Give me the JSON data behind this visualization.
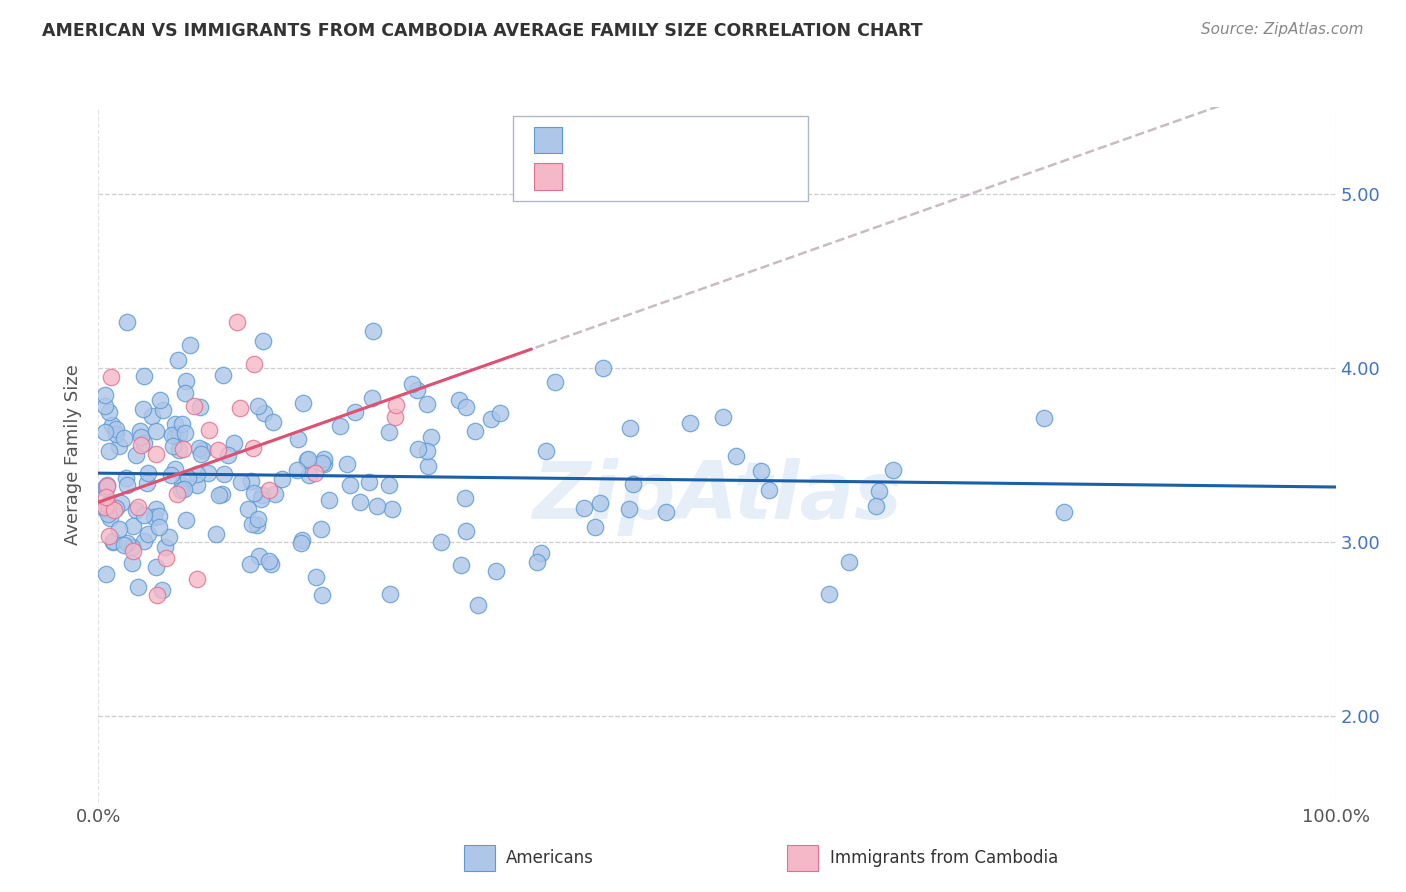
{
  "title": "AMERICAN VS IMMIGRANTS FROM CAMBODIA AVERAGE FAMILY SIZE CORRELATION CHART",
  "source": "Source: ZipAtlas.com",
  "ylabel": "Average Family Size",
  "ylabel_right_ticks": [
    2.0,
    3.0,
    4.0,
    5.0
  ],
  "ylim": [
    1.5,
    5.5
  ],
  "xlim": [
    0.0,
    100.0
  ],
  "watermark": "ZipAtlas",
  "americans_color": "#aec6e8",
  "cambodia_color": "#f4b8c8",
  "americans_edge": "#5b9bd5",
  "cambodia_edge": "#e07090",
  "trend_american_color": "#1a5fa8",
  "trend_cambodia_color": "#e05070",
  "trend_cambodia_dash_color": "#c0b0b8",
  "background_color": "#ffffff",
  "grid_color": "#c8c8d0",
  "seed": 42,
  "n_american": 177,
  "n_cambodia": 27
}
